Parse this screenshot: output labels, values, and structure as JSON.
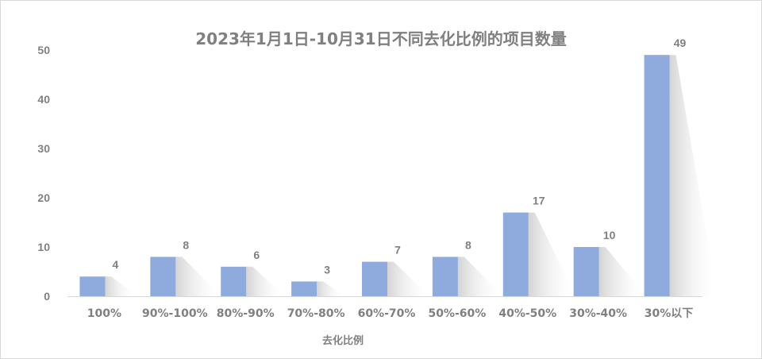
{
  "chart_data": {
    "type": "bar",
    "title": "2023年1月1日-10月31日不同去化比例的项目数量",
    "xlabel": "去化比例",
    "ylabel": "",
    "categories": [
      "100%",
      "90%-100%",
      "80%-90%",
      "70%-80%",
      "60%-70%",
      "50%-60%",
      "40%-50%",
      "30%-40%",
      "30%以下"
    ],
    "values": [
      4,
      8,
      6,
      3,
      7,
      8,
      17,
      10,
      49
    ],
    "ylim": [
      0,
      50
    ],
    "yticks": [
      0,
      10,
      20,
      30,
      40,
      50
    ],
    "data_labels": true,
    "grid": false,
    "legend": "none",
    "colors": {
      "bar": "#8faadc",
      "text": "#808080",
      "axis": "#d9d9d9"
    }
  }
}
